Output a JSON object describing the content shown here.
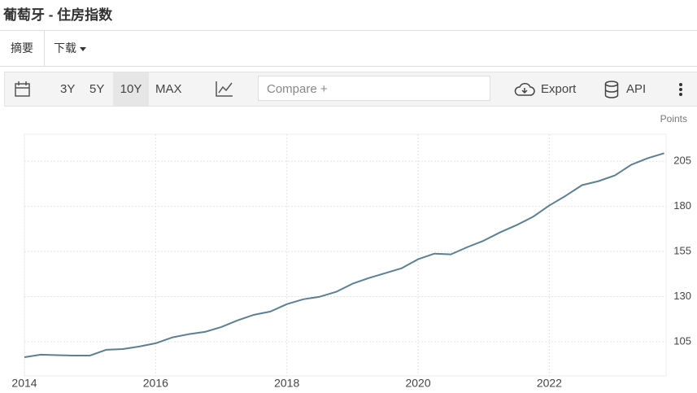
{
  "ui": {
    "tabs": [
      "摘要",
      "下载"
    ],
    "ranges": [
      "3Y",
      "5Y",
      "10Y",
      "MAX"
    ],
    "compare": "Compare +",
    "export": "Export",
    "api": "API"
  },
  "chart_data": {
    "type": "line",
    "title": "葡萄牙 - 住房指数",
    "y_label": "Points",
    "x": [
      2014,
      2014.25,
      2014.5,
      2014.75,
      2015,
      2015.25,
      2015.5,
      2015.75,
      2016,
      2016.25,
      2016.5,
      2016.75,
      2017,
      2017.25,
      2017.5,
      2017.75,
      2018,
      2018.25,
      2018.5,
      2018.75,
      2019,
      2019.25,
      2019.5,
      2019.75,
      2020,
      2020.25,
      2020.5,
      2020.75,
      2021,
      2021.25,
      2021.5,
      2021.75,
      2022,
      2022.25,
      2022.5,
      2022.75,
      2023,
      2023.25,
      2023.5,
      2023.75
    ],
    "series": [
      {
        "color": "#5b7f95",
        "values": [
          96.4,
          97.8,
          97.5,
          97.3,
          97.3,
          100.5,
          100.9,
          102.3,
          104.1,
          107.3,
          109.1,
          110.4,
          113.1,
          116.8,
          119.9,
          121.7,
          125.8,
          128.5,
          129.9,
          132.6,
          137.1,
          140.3,
          143.0,
          145.7,
          150.7,
          153.8,
          153.4,
          157.4,
          161.0,
          165.6,
          169.6,
          174.2,
          180.5,
          185.9,
          191.8,
          194.0,
          197.2,
          203.1,
          206.7,
          209.5
        ]
      }
    ],
    "xlim": [
      2014,
      2023.78
    ],
    "xticks": [
      2014,
      2016,
      2018,
      2020,
      2022
    ],
    "ylim": [
      86,
      220
    ],
    "yticks": [
      105,
      130,
      155,
      180,
      205
    ],
    "grid": true
  }
}
